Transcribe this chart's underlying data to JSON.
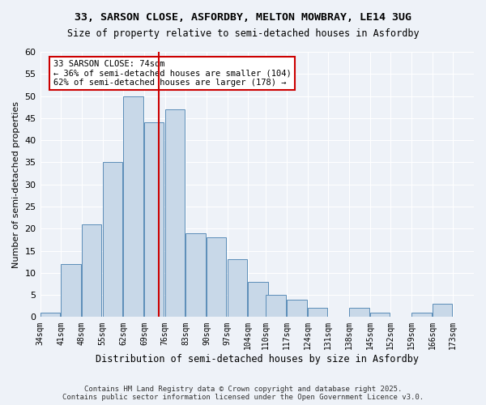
{
  "title1": "33, SARSON CLOSE, ASFORDBY, MELTON MOWBRAY, LE14 3UG",
  "title2": "Size of property relative to semi-detached houses in Asfordby",
  "xlabel": "Distribution of semi-detached houses by size in Asfordby",
  "ylabel": "Number of semi-detached properties",
  "bins": [
    34,
    41,
    48,
    55,
    62,
    69,
    76,
    83,
    90,
    97,
    104,
    110,
    117,
    124,
    131,
    138,
    145,
    152,
    159,
    166,
    173
  ],
  "counts": [
    1,
    12,
    21,
    35,
    50,
    44,
    47,
    19,
    18,
    13,
    8,
    5,
    4,
    2,
    0,
    2,
    1,
    0,
    1,
    3
  ],
  "bar_color": "#c8d8e8",
  "bar_edge_color": "#5b8db8",
  "vline_x": 74,
  "vline_color": "#cc0000",
  "annotation_title": "33 SARSON CLOSE: 74sqm",
  "annotation_line1": "← 36% of semi-detached houses are smaller (104)",
  "annotation_line2": "62% of semi-detached houses are larger (178) →",
  "annotation_box_color": "#ffffff",
  "annotation_box_edge": "#cc0000",
  "footer1": "Contains HM Land Registry data © Crown copyright and database right 2025.",
  "footer2": "Contains public sector information licensed under the Open Government Licence v3.0.",
  "bg_color": "#eef2f8",
  "ylim": [
    0,
    60
  ],
  "tick_labels": [
    "34sqm",
    "41sqm",
    "48sqm",
    "55sqm",
    "62sqm",
    "69sqm",
    "76sqm",
    "83sqm",
    "90sqm",
    "97sqm",
    "104sqm",
    "110sqm",
    "117sqm",
    "124sqm",
    "131sqm",
    "138sqm",
    "145sqm",
    "152sqm",
    "159sqm",
    "166sqm",
    "173sqm"
  ]
}
